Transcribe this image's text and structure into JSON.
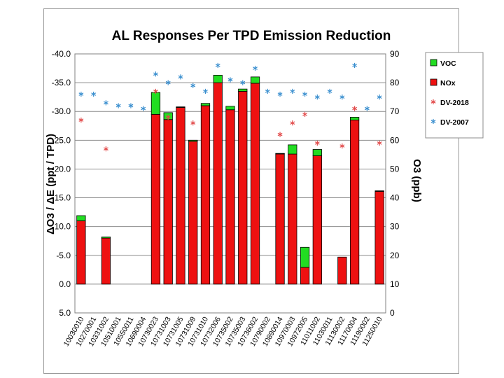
{
  "chart_data": {
    "type": "bar",
    "title": "AL Responses Per TPD Emission Reduction",
    "ylabel": "ΔO3 / ΔE (ppt / TPD)",
    "y2label": "O3 (ppb)",
    "ylim": [
      5.0,
      -40.0
    ],
    "y2lim": [
      0,
      90
    ],
    "yticks": [
      "-40.0",
      "-35.0",
      "-30.0",
      "-25.0",
      "-20.0",
      "-15.0",
      "-10.0",
      "-5.0",
      "0.0",
      "5.0"
    ],
    "y2ticks": [
      "90",
      "80",
      "70",
      "60",
      "50",
      "40",
      "30",
      "20",
      "10",
      "0"
    ],
    "categories": [
      "10030010",
      "10270001",
      "10331002",
      "10510001",
      "10550011",
      "10690004",
      "10730023",
      "10731003",
      "10731005",
      "10731009",
      "10731010",
      "10732006",
      "10735002",
      "10735003",
      "10736002",
      "10790002",
      "10890014",
      "10970003",
      "10972005",
      "11011002",
      "11030011",
      "11130002",
      "11170004",
      "11190002",
      "11250010"
    ],
    "series": [
      {
        "name": "VOC",
        "color": "#22dd22",
        "values": [
          -0.9,
          0,
          -0.2,
          0,
          0,
          0,
          -3.8,
          -1.2,
          -0.1,
          0.2,
          -0.4,
          -1.3,
          -0.6,
          -0.4,
          -1.1,
          0,
          0.1,
          -1.6,
          -3.5,
          -1.1,
          0,
          0,
          -0.5,
          0,
          0.1
        ]
      },
      {
        "name": "NOx",
        "color": "#ee1111",
        "values": [
          -11.0,
          0,
          -8.0,
          0,
          0,
          0,
          -29.5,
          -28.6,
          -30.7,
          -25.0,
          -31.0,
          -35.0,
          -30.3,
          -33.5,
          -34.9,
          0,
          -22.7,
          -22.6,
          -2.9,
          -22.3,
          0,
          -4.7,
          -28.5,
          0,
          -16.2
        ]
      },
      {
        "name": "DV-2018",
        "color": "#e24a4a",
        "axis": "right",
        "values": [
          67,
          null,
          57,
          null,
          null,
          null,
          77,
          68,
          null,
          66,
          null,
          null,
          null,
          null,
          null,
          null,
          62,
          66,
          69,
          59,
          null,
          58,
          71,
          null,
          59
        ]
      },
      {
        "name": "DV-2007",
        "color": "#3a8fcf",
        "axis": "right",
        "values": [
          76,
          76,
          73,
          72,
          72,
          71,
          83,
          80,
          82,
          79,
          77,
          86,
          81,
          80,
          85,
          77,
          76,
          77,
          76,
          75,
          77,
          75,
          86,
          71,
          75
        ]
      }
    ],
    "legend": [
      "VOC",
      "NOx",
      "DV-2018",
      "DV-2007"
    ],
    "legend_position": "right"
  }
}
